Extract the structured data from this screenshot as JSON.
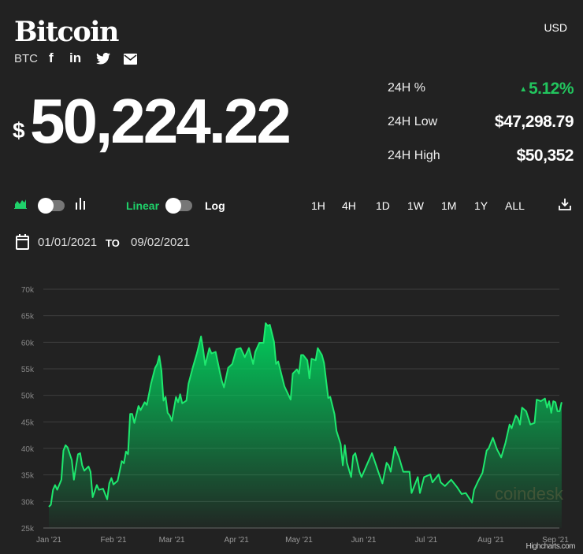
{
  "header": {
    "title": "Bitcoin",
    "currency": "USD",
    "symbol": "BTC",
    "social_icons": [
      "facebook-icon",
      "linkedin-icon",
      "twitter-icon",
      "email-icon"
    ]
  },
  "price": {
    "dollar": "$",
    "value": "50,224.22"
  },
  "stats": [
    {
      "label": "24H %",
      "value": "5.12%",
      "direction": "up",
      "color": "#22c55e"
    },
    {
      "label": "24H Low",
      "value": "$47,298.79"
    },
    {
      "label": "24H High",
      "value": "$50,352"
    }
  ],
  "controls": {
    "scale_linear": "Linear",
    "scale_log": "Log",
    "active_scale": "Linear",
    "ranges": [
      "1H",
      "4H",
      "1D",
      "1W",
      "1M",
      "1Y",
      "ALL"
    ],
    "accent": "#1fd16a"
  },
  "date_range": {
    "from": "01/01/2021",
    "to_label": "TO",
    "to": "09/02/2021"
  },
  "credits": "Highcharts.com",
  "watermark": "coindesk",
  "chart_data": {
    "type": "area",
    "title": "",
    "xlabel": "",
    "ylabel": "",
    "ylim": [
      25,
      70
    ],
    "y_unit": "k",
    "yticks": [
      "25k",
      "30k",
      "35k",
      "40k",
      "45k",
      "50k",
      "55k",
      "60k",
      "65k",
      "70k"
    ],
    "xticks": [
      {
        "label": "Jan '21",
        "date": "2021-01-01"
      },
      {
        "label": "Feb '21",
        "date": "2021-02-01"
      },
      {
        "label": "Mar '21",
        "date": "2021-03-01"
      },
      {
        "label": "Apr '21",
        "date": "2021-04-01"
      },
      {
        "label": "May '21",
        "date": "2021-05-01"
      },
      {
        "label": "Jun '21",
        "date": "2021-06-01"
      },
      {
        "label": "Jul '21",
        "date": "2021-07-01"
      },
      {
        "label": "Aug '21",
        "date": "2021-08-01"
      },
      {
        "label": "Sep '21",
        "date": "2021-09-01"
      }
    ],
    "grid": true,
    "line_color": "#1ee86e",
    "points": [
      [
        "2021-01-01",
        29.0
      ],
      [
        "2021-01-02",
        29.4
      ],
      [
        "2021-01-03",
        32.2
      ],
      [
        "2021-01-04",
        33.1
      ],
      [
        "2021-01-05",
        32.2
      ],
      [
        "2021-01-07",
        34.1
      ],
      [
        "2021-01-08",
        39.6
      ],
      [
        "2021-01-09",
        40.6
      ],
      [
        "2021-01-10",
        40.2
      ],
      [
        "2021-01-12",
        37.8
      ],
      [
        "2021-01-13",
        34.1
      ],
      [
        "2021-01-15",
        38.9
      ],
      [
        "2021-01-16",
        39.1
      ],
      [
        "2021-01-17",
        36.8
      ],
      [
        "2021-01-18",
        35.8
      ],
      [
        "2021-01-20",
        36.6
      ],
      [
        "2021-01-21",
        35.6
      ],
      [
        "2021-01-22",
        30.8
      ],
      [
        "2021-01-24",
        33.1
      ],
      [
        "2021-01-25",
        32.2
      ],
      [
        "2021-01-27",
        32.4
      ],
      [
        "2021-01-29",
        30.4
      ],
      [
        "2021-01-30",
        33.4
      ],
      [
        "2021-01-31",
        34.4
      ],
      [
        "2021-02-01",
        33.2
      ],
      [
        "2021-02-03",
        33.9
      ],
      [
        "2021-02-05",
        37.6
      ],
      [
        "2021-02-06",
        37.2
      ],
      [
        "2021-02-07",
        39.4
      ],
      [
        "2021-02-08",
        38.9
      ],
      [
        "2021-02-09",
        46.5
      ],
      [
        "2021-02-10",
        46.5
      ],
      [
        "2021-02-11",
        44.8
      ],
      [
        "2021-02-13",
        48.0
      ],
      [
        "2021-02-14",
        47.2
      ],
      [
        "2021-02-16",
        48.7
      ],
      [
        "2021-02-17",
        48.2
      ],
      [
        "2021-02-19",
        52.2
      ],
      [
        "2021-02-21",
        55.2
      ],
      [
        "2021-02-22",
        55.9
      ],
      [
        "2021-02-23",
        57.4
      ],
      [
        "2021-02-24",
        54.7
      ],
      [
        "2021-02-25",
        49.0
      ],
      [
        "2021-02-26",
        49.7
      ],
      [
        "2021-02-27",
        46.7
      ],
      [
        "2021-02-28",
        46.2
      ],
      [
        "2021-03-01",
        45.2
      ],
      [
        "2021-03-03",
        49.7
      ],
      [
        "2021-03-04",
        48.7
      ],
      [
        "2021-03-05",
        50.2
      ],
      [
        "2021-03-06",
        48.5
      ],
      [
        "2021-03-08",
        49.0
      ],
      [
        "2021-03-09",
        52.2
      ],
      [
        "2021-03-11",
        55.2
      ],
      [
        "2021-03-13",
        57.9
      ],
      [
        "2021-03-15",
        61.1
      ],
      [
        "2021-03-16",
        58.7
      ],
      [
        "2021-03-17",
        55.7
      ],
      [
        "2021-03-19",
        58.9
      ],
      [
        "2021-03-20",
        57.9
      ],
      [
        "2021-03-22",
        58.2
      ],
      [
        "2021-03-24",
        54.4
      ],
      [
        "2021-03-25",
        52.7
      ],
      [
        "2021-03-26",
        51.5
      ],
      [
        "2021-03-28",
        55.2
      ],
      [
        "2021-03-30",
        55.9
      ],
      [
        "2021-04-01",
        58.7
      ],
      [
        "2021-04-03",
        58.9
      ],
      [
        "2021-04-05",
        57.2
      ],
      [
        "2021-04-07",
        58.9
      ],
      [
        "2021-04-09",
        55.9
      ],
      [
        "2021-04-10",
        58.2
      ],
      [
        "2021-04-12",
        59.9
      ],
      [
        "2021-04-14",
        59.9
      ],
      [
        "2021-04-15",
        63.6
      ],
      [
        "2021-04-16",
        63.1
      ],
      [
        "2021-04-17",
        63.3
      ],
      [
        "2021-04-19",
        60.1
      ],
      [
        "2021-04-20",
        55.9
      ],
      [
        "2021-04-21",
        56.4
      ],
      [
        "2021-04-24",
        51.7
      ],
      [
        "2021-04-27",
        49.2
      ],
      [
        "2021-04-28",
        54.1
      ],
      [
        "2021-04-30",
        54.9
      ],
      [
        "2021-05-01",
        54.1
      ],
      [
        "2021-05-02",
        57.6
      ],
      [
        "2021-05-03",
        57.6
      ],
      [
        "2021-05-05",
        56.6
      ],
      [
        "2021-05-06",
        53.2
      ],
      [
        "2021-05-07",
        56.9
      ],
      [
        "2021-05-09",
        56.6
      ],
      [
        "2021-05-10",
        58.9
      ],
      [
        "2021-05-12",
        57.6
      ],
      [
        "2021-05-13",
        56.1
      ],
      [
        "2021-05-15",
        49.5
      ],
      [
        "2021-05-16",
        49.7
      ],
      [
        "2021-05-18",
        46.5
      ],
      [
        "2021-05-19",
        43.3
      ],
      [
        "2021-05-21",
        40.8
      ],
      [
        "2021-05-22",
        36.8
      ],
      [
        "2021-05-23",
        40.6
      ],
      [
        "2021-05-24",
        37.3
      ],
      [
        "2021-05-26",
        34.6
      ],
      [
        "2021-05-27",
        38.6
      ],
      [
        "2021-05-28",
        39.1
      ],
      [
        "2021-05-30",
        35.6
      ],
      [
        "2021-05-31",
        34.6
      ],
      [
        "2021-06-03",
        37.3
      ],
      [
        "2021-06-05",
        39.1
      ],
      [
        "2021-06-07",
        36.8
      ],
      [
        "2021-06-08",
        35.6
      ],
      [
        "2021-06-10",
        33.4
      ],
      [
        "2021-06-12",
        37.3
      ],
      [
        "2021-06-13",
        36.8
      ],
      [
        "2021-06-14",
        35.6
      ],
      [
        "2021-06-16",
        40.3
      ],
      [
        "2021-06-18",
        38.3
      ],
      [
        "2021-06-20",
        35.6
      ],
      [
        "2021-06-23",
        35.6
      ],
      [
        "2021-06-24",
        31.6
      ],
      [
        "2021-06-27",
        34.6
      ],
      [
        "2021-06-28",
        31.6
      ],
      [
        "2021-06-30",
        34.6
      ],
      [
        "2021-07-03",
        35.1
      ],
      [
        "2021-07-04",
        33.6
      ],
      [
        "2021-07-07",
        35.1
      ],
      [
        "2021-07-08",
        33.6
      ],
      [
        "2021-07-10",
        32.9
      ],
      [
        "2021-07-13",
        34.1
      ],
      [
        "2021-07-16",
        32.6
      ],
      [
        "2021-07-18",
        31.4
      ],
      [
        "2021-07-20",
        31.6
      ],
      [
        "2021-07-23",
        29.8
      ],
      [
        "2021-07-24",
        32.2
      ],
      [
        "2021-07-26",
        33.9
      ],
      [
        "2021-07-28",
        35.4
      ],
      [
        "2021-07-30",
        39.6
      ],
      [
        "2021-07-31",
        40.0
      ],
      [
        "2021-08-02",
        42.0
      ],
      [
        "2021-08-04",
        39.8
      ],
      [
        "2021-08-06",
        38.3
      ],
      [
        "2021-08-08",
        41.0
      ],
      [
        "2021-08-10",
        44.5
      ],
      [
        "2021-08-11",
        43.8
      ],
      [
        "2021-08-13",
        46.2
      ],
      [
        "2021-08-14",
        45.7
      ],
      [
        "2021-08-15",
        44.5
      ],
      [
        "2021-08-16",
        47.7
      ],
      [
        "2021-08-18",
        47.0
      ],
      [
        "2021-08-20",
        44.5
      ],
      [
        "2021-08-22",
        44.8
      ],
      [
        "2021-08-23",
        49.2
      ],
      [
        "2021-08-25",
        48.9
      ],
      [
        "2021-08-27",
        49.4
      ],
      [
        "2021-08-28",
        47.7
      ],
      [
        "2021-08-29",
        48.9
      ],
      [
        "2021-08-30",
        46.7
      ],
      [
        "2021-08-31",
        48.9
      ],
      [
        "2021-09-01",
        48.7
      ],
      [
        "2021-09-02",
        47.0
      ],
      [
        "2021-09-03",
        47.0
      ],
      [
        "2021-09-04",
        48.7
      ]
    ]
  }
}
